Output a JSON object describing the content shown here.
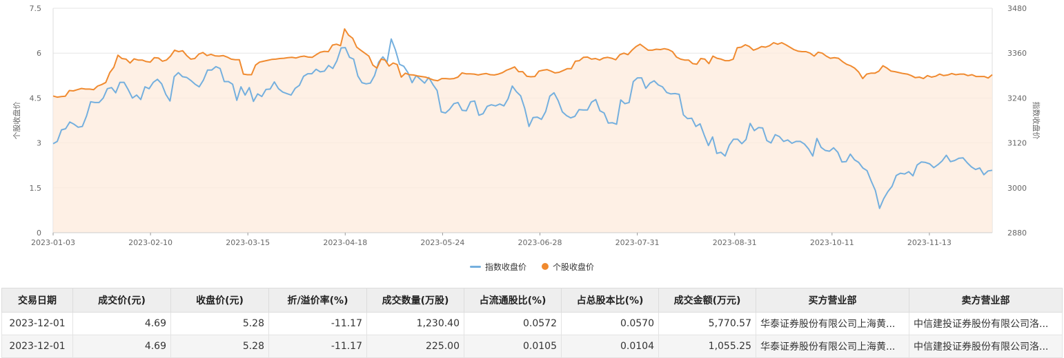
{
  "chart_data": {
    "type": "line",
    "x_ticks": [
      "2023-01-03",
      "2023-02-10",
      "2023-03-15",
      "2023-04-18",
      "2023-05-24",
      "2023-06-28",
      "2023-07-31",
      "2023-08-31",
      "2023-10-11",
      "2023-11-13"
    ],
    "ylabel_left": "个股收盘价",
    "ylabel_right": "指数收盘价",
    "y_left": {
      "min": 0,
      "max": 7.5,
      "ticks": [
        "0",
        "1.5",
        "3",
        "4.5",
        "6",
        "7.5"
      ]
    },
    "y_right": {
      "min": 2880,
      "max": 3480,
      "ticks": [
        "2880",
        "3000",
        "3120",
        "3240",
        "3360",
        "3480"
      ]
    },
    "legend": [
      {
        "name": "指数收盘价",
        "color": "#74afde"
      },
      {
        "name": "个股收盘价",
        "color": "#f08a2f"
      }
    ],
    "series": [
      {
        "name": "指数收盘价",
        "axis": "right",
        "values": [
          3118,
          3124,
          3155,
          3158,
          3176,
          3170,
          3162,
          3164,
          3192,
          3230,
          3228,
          3228,
          3240,
          3265,
          3268,
          3254,
          3282,
          3282,
          3262,
          3240,
          3248,
          3236,
          3270,
          3265,
          3282,
          3290,
          3278,
          3250,
          3232,
          3297,
          3308,
          3297,
          3295,
          3287,
          3277,
          3270,
          3288,
          3315,
          3315,
          3324,
          3319,
          3284,
          3284,
          3277,
          3234,
          3270,
          3248,
          3268,
          3231,
          3251,
          3244,
          3263,
          3264,
          3283,
          3265,
          3256,
          3252,
          3248,
          3266,
          3274,
          3298,
          3305,
          3305,
          3317,
          3310,
          3312,
          3327,
          3319,
          3340,
          3374,
          3375,
          3349,
          3344,
          3299,
          3281,
          3278,
          3280,
          3300,
          3336,
          3350,
          3336,
          3398,
          3369,
          3330,
          3325,
          3308,
          3281,
          3300,
          3290,
          3280,
          3295,
          3276,
          3260,
          3203,
          3200,
          3210,
          3225,
          3228,
          3207,
          3206,
          3230,
          3232,
          3194,
          3198,
          3218,
          3222,
          3219,
          3224,
          3219,
          3238,
          3272,
          3257,
          3246,
          3212,
          3164,
          3188,
          3189,
          3183,
          3204,
          3245,
          3254,
          3233,
          3203,
          3193,
          3187,
          3191,
          3209,
          3208,
          3208,
          3229,
          3236,
          3206,
          3200,
          3173,
          3174,
          3170,
          3235,
          3225,
          3228,
          3284,
          3294,
          3294,
          3266,
          3280,
          3286,
          3275,
          3270,
          3255,
          3251,
          3252,
          3250,
          3195,
          3185,
          3186,
          3164,
          3171,
          3141,
          3113,
          3136,
          3092,
          3095,
          3085,
          3114,
          3130,
          3130,
          3118,
          3129,
          3172,
          3153,
          3161,
          3160,
          3126,
          3120,
          3142,
          3137,
          3124,
          3128,
          3119,
          3124,
          3124,
          3117,
          3104,
          3085,
          3132,
          3108,
          3100,
          3098,
          3107,
          3095,
          3069,
          3070,
          3090,
          3075,
          3068,
          3053,
          3046,
          3018,
          2993,
          2945,
          2971,
          2990,
          3004,
          3033,
          3039,
          3037,
          3043,
          3032,
          3061,
          3069,
          3068,
          3064,
          3054,
          3062,
          3072,
          3087,
          3070,
          3073,
          3079,
          3080,
          3067,
          3056,
          3049,
          3053,
          3035,
          3045,
          3047
        ]
      },
      {
        "name": "个股收盘价",
        "axis": "left",
        "values": [
          4.57,
          4.53,
          4.55,
          4.56,
          4.75,
          4.74,
          4.78,
          4.82,
          4.8,
          4.8,
          4.78,
          4.9,
          4.95,
          5.02,
          5.35,
          5.53,
          5.93,
          5.82,
          5.8,
          5.67,
          5.81,
          5.77,
          5.77,
          5.72,
          5.7,
          5.85,
          5.84,
          5.73,
          5.77,
          5.9,
          6.1,
          6.05,
          6.08,
          5.92,
          5.8,
          5.82,
          5.97,
          6.02,
          5.92,
          5.96,
          5.91,
          5.9,
          5.92,
          5.87,
          5.8,
          5.78,
          5.78,
          5.3,
          5.28,
          5.28,
          5.6,
          5.7,
          5.73,
          5.76,
          5.79,
          5.8,
          5.82,
          5.83,
          5.85,
          5.86,
          5.84,
          5.88,
          5.9,
          5.87,
          5.86,
          5.95,
          6.03,
          6.06,
          6.05,
          6.27,
          6.3,
          6.25,
          6.81,
          6.6,
          6.5,
          6.2,
          6.1,
          6.0,
          5.9,
          5.6,
          5.5,
          5.8,
          5.77,
          5.57,
          5.67,
          5.62,
          5.2,
          5.33,
          5.28,
          5.27,
          5.24,
          5.22,
          5.2,
          5.15,
          5.1,
          5.08,
          5.15,
          5.15,
          5.14,
          5.15,
          5.2,
          5.34,
          5.31,
          5.31,
          5.3,
          5.27,
          5.3,
          5.32,
          5.28,
          5.27,
          5.3,
          5.35,
          5.43,
          5.48,
          5.54,
          5.38,
          5.38,
          5.23,
          5.21,
          5.22,
          5.4,
          5.43,
          5.45,
          5.4,
          5.34,
          5.36,
          5.42,
          5.48,
          5.48,
          5.73,
          5.75,
          5.86,
          5.87,
          5.8,
          5.82,
          5.77,
          5.84,
          5.86,
          5.83,
          5.78,
          5.95,
          6.0,
          5.95,
          6.1,
          6.22,
          6.3,
          6.2,
          6.1,
          6.1,
          6.13,
          6.12,
          6.15,
          6.12,
          6.05,
          5.87,
          5.8,
          5.77,
          5.77,
          5.65,
          5.63,
          5.82,
          5.8,
          5.65,
          5.9,
          5.83,
          5.8,
          5.75,
          5.75,
          5.8,
          6.18,
          6.2,
          6.28,
          6.22,
          6.1,
          6.15,
          6.22,
          6.2,
          6.25,
          6.35,
          6.3,
          6.35,
          6.28,
          6.2,
          6.12,
          6.07,
          6.05,
          6.05,
          6.0,
          5.9,
          6.03,
          6.0,
          5.9,
          5.83,
          5.85,
          5.83,
          5.72,
          5.63,
          5.58,
          5.5,
          5.37,
          5.15,
          5.3,
          5.33,
          5.33,
          5.4,
          5.58,
          5.5,
          5.4,
          5.38,
          5.35,
          5.32,
          5.3,
          5.25,
          5.18,
          5.2,
          5.15,
          5.25,
          5.2,
          5.23,
          5.3,
          5.25,
          5.27,
          5.32,
          5.28,
          5.3,
          5.3,
          5.25,
          5.28,
          5.22,
          5.22,
          5.22,
          5.17,
          5.28
        ]
      }
    ]
  },
  "table": {
    "headers": [
      "交易日期",
      "成交价(元)",
      "收盘价(元)",
      "折/溢价率(%)",
      "成交数量(万股)",
      "占流通股比(%)",
      "占总股本比(%)",
      "成交金额(万元)",
      "买方营业部",
      "卖方营业部"
    ],
    "rows": [
      [
        "2023-12-01",
        "4.69",
        "5.28",
        "-11.17",
        "1,230.40",
        "0.0572",
        "0.0570",
        "5,770.57",
        "华泰证券股份有限公司上海黄...",
        "中信建投证券股份有限公司洛..."
      ],
      [
        "2023-12-01",
        "4.69",
        "5.28",
        "-11.17",
        "225.00",
        "0.0105",
        "0.0104",
        "1,055.25",
        "华泰证券股份有限公司上海黄...",
        "中信建投证券股份有限公司洛..."
      ]
    ]
  }
}
